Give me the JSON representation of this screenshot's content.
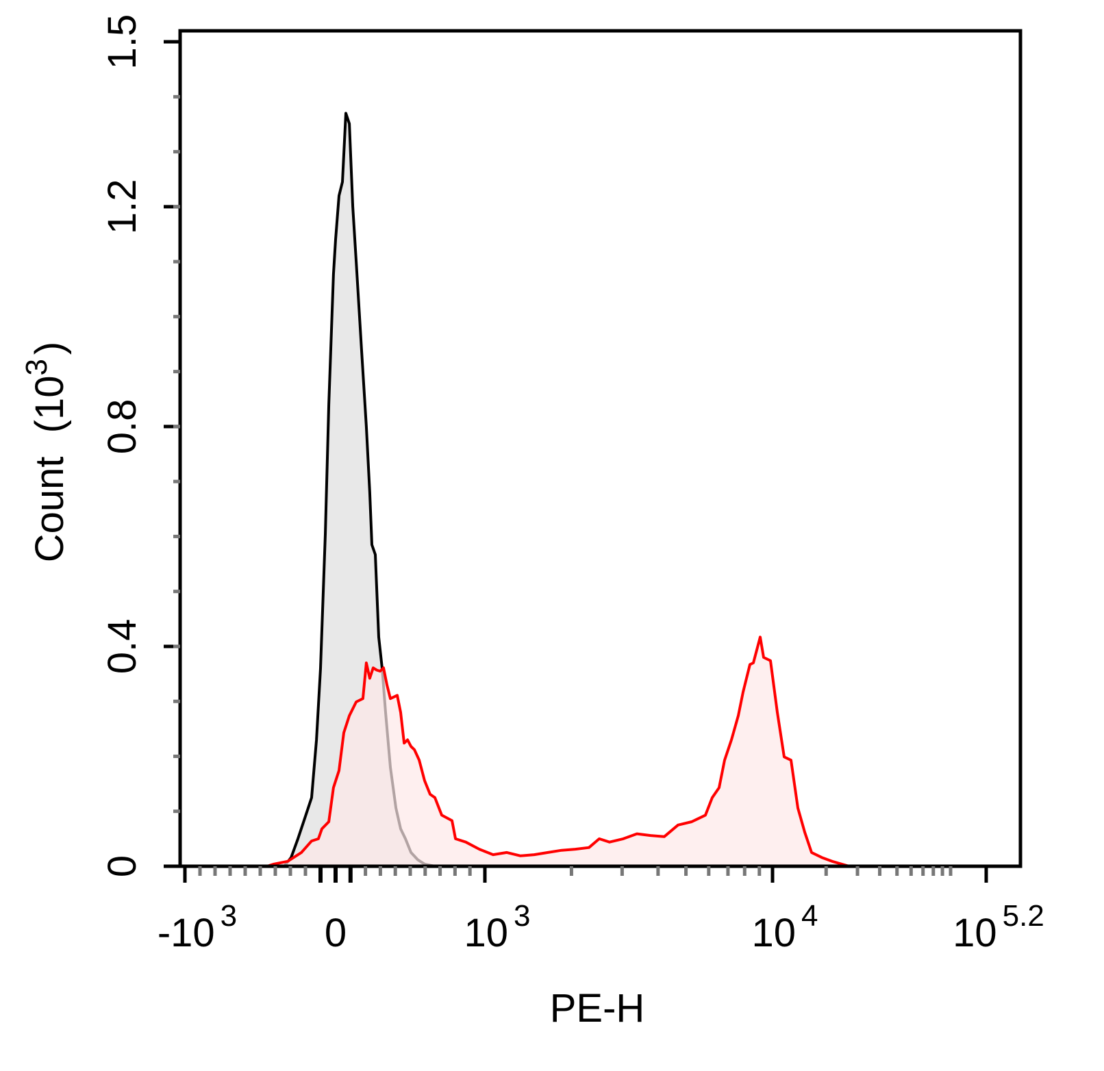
{
  "chart_data": {
    "type": "area",
    "xlabel": "PE-H",
    "ylabel": "Count",
    "ylabel_unit": "(10",
    "ylabel_unit_exp": "3",
    "ylabel_unit_close": ")",
    "x_scale": "biexponential",
    "xlim": [
      -1000,
      158489
    ],
    "ylim": [
      0,
      1.5
    ],
    "y_unit_multiplier": 1000,
    "grid": false,
    "x_ticks": [
      {
        "value": -1000,
        "base": "-10",
        "exp": "3"
      },
      {
        "value": 0,
        "base": "0",
        "exp": ""
      },
      {
        "value": 1000,
        "base": "10",
        "exp": "3"
      },
      {
        "value": 10000,
        "base": "10",
        "exp": "4"
      },
      {
        "value": 158489,
        "base": "10",
        "exp": "5.2"
      }
    ],
    "y_ticks": [
      {
        "value": 0,
        "label": "0"
      },
      {
        "value": 0.4,
        "label": "0.4"
      },
      {
        "value": 0.8,
        "label": "0.8"
      },
      {
        "value": 1.2,
        "label": "1.2"
      },
      {
        "value": 1.5,
        "label": "1.5"
      }
    ],
    "series": [
      {
        "color": "#000000",
        "fill": "#e8e8e8",
        "points": [
          [
            -341,
            0
          ],
          [
            -295,
            0.016
          ],
          [
            -250,
            0.05
          ],
          [
            -205,
            0.087
          ],
          [
            -159,
            0.125
          ],
          [
            -127,
            0.23
          ],
          [
            -100,
            0.36
          ],
          [
            -68,
            0.604
          ],
          [
            -45,
            0.84
          ],
          [
            -14,
            1.077
          ],
          [
            0,
            1.14
          ],
          [
            23,
            1.22
          ],
          [
            46,
            1.245
          ],
          [
            69,
            1.37
          ],
          [
            92,
            1.351
          ],
          [
            115,
            1.2
          ],
          [
            138,
            1.1
          ],
          [
            174,
            0.94
          ],
          [
            206,
            0.8
          ],
          [
            229,
            0.68
          ],
          [
            243,
            0.585
          ],
          [
            266,
            0.567
          ],
          [
            289,
            0.417
          ],
          [
            312,
            0.36
          ],
          [
            335,
            0.28
          ],
          [
            367,
            0.18
          ],
          [
            404,
            0.106
          ],
          [
            436,
            0.068
          ],
          [
            468,
            0.05
          ],
          [
            505,
            0.025
          ],
          [
            550,
            0.012
          ],
          [
            596,
            0.004
          ],
          [
            665,
            0
          ]
        ]
      },
      {
        "color": "#ff0000",
        "fill": "#fde8e8",
        "points": [
          [
            -455,
            0
          ],
          [
            -409,
            0.004
          ],
          [
            -318,
            0.009
          ],
          [
            -227,
            0.025
          ],
          [
            -159,
            0.046
          ],
          [
            -114,
            0.05
          ],
          [
            -91,
            0.068
          ],
          [
            -45,
            0.081
          ],
          [
            -14,
            0.143
          ],
          [
            23,
            0.174
          ],
          [
            55,
            0.243
          ],
          [
            92,
            0.274
          ],
          [
            138,
            0.299
          ],
          [
            183,
            0.305
          ],
          [
            206,
            0.37
          ],
          [
            229,
            0.342
          ],
          [
            252,
            0.361
          ],
          [
            275,
            0.357
          ],
          [
            298,
            0.355
          ],
          [
            321,
            0.361
          ],
          [
            344,
            0.33
          ],
          [
            367,
            0.305
          ],
          [
            413,
            0.311
          ],
          [
            436,
            0.28
          ],
          [
            459,
            0.224
          ],
          [
            482,
            0.23
          ],
          [
            505,
            0.218
          ],
          [
            528,
            0.212
          ],
          [
            560,
            0.193
          ],
          [
            596,
            0.156
          ],
          [
            633,
            0.131
          ],
          [
            665,
            0.125
          ],
          [
            711,
            0.093
          ],
          [
            780,
            0.083
          ],
          [
            803,
            0.05
          ],
          [
            872,
            0.044
          ],
          [
            963,
            0.031
          ],
          [
            1068,
            0.021
          ],
          [
            1192,
            0.025
          ],
          [
            1330,
            0.019
          ],
          [
            1484,
            0.021
          ],
          [
            1656,
            0.025
          ],
          [
            1848,
            0.029
          ],
          [
            2062,
            0.031
          ],
          [
            2301,
            0.034
          ],
          [
            2498,
            0.05
          ],
          [
            2712,
            0.044
          ],
          [
            3027,
            0.05
          ],
          [
            3378,
            0.059
          ],
          [
            3769,
            0.056
          ],
          [
            4206,
            0.054
          ],
          [
            4693,
            0.075
          ],
          [
            5237,
            0.081
          ],
          [
            5844,
            0.093
          ],
          [
            6173,
            0.125
          ],
          [
            6521,
            0.143
          ],
          [
            6813,
            0.193
          ],
          [
            7197,
            0.23
          ],
          [
            7603,
            0.274
          ],
          [
            7900,
            0.317
          ],
          [
            8346,
            0.367
          ],
          [
            8577,
            0.37
          ],
          [
            9061,
            0.417
          ],
          [
            9312,
            0.38
          ],
          [
            9837,
            0.374
          ],
          [
            10640,
            0.28
          ],
          [
            11627,
            0.199
          ],
          [
            12700,
            0.193
          ],
          [
            13880,
            0.106
          ],
          [
            15160,
            0.062
          ],
          [
            16570,
            0.025
          ],
          [
            18920,
            0.016
          ],
          [
            21610,
            0.009
          ],
          [
            26970,
            0
          ]
        ]
      }
    ]
  }
}
